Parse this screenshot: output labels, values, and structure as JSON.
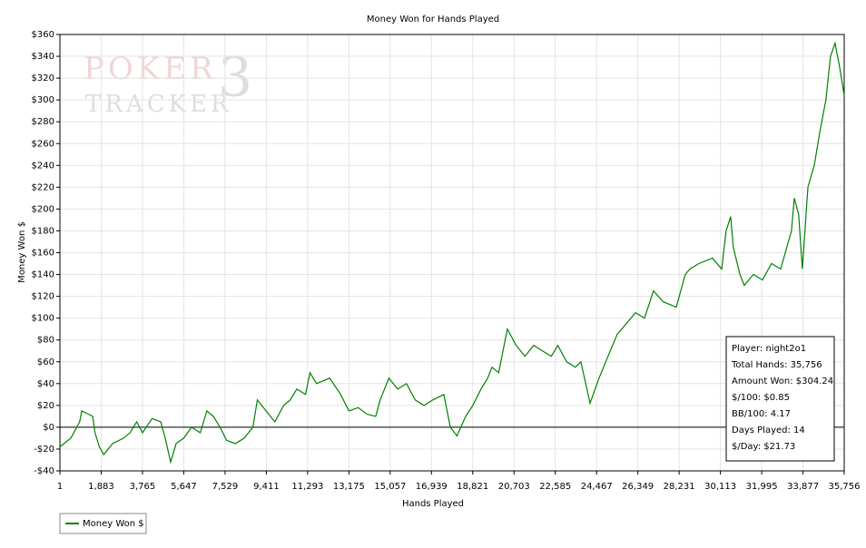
{
  "chart_data": {
    "type": "line",
    "title": "Money Won for Hands Played",
    "xlabel": "Hands Played",
    "ylabel": "Money Won $",
    "watermark": [
      "POKER",
      "TRACKER",
      "3"
    ],
    "grid": true,
    "legend": "bottom-left",
    "xlim": [
      1,
      35756
    ],
    "ylim": [
      -40,
      360
    ],
    "xticks": [
      1,
      {
        "value": 1883,
        "label": "1,883"
      },
      {
        "value": 3765,
        "label": "3,765"
      },
      {
        "value": 5647,
        "label": "5,647"
      },
      {
        "value": 7529,
        "label": "7,529"
      },
      {
        "value": 9411,
        "label": "9,411"
      },
      {
        "value": 11293,
        "label": "11,293"
      },
      {
        "value": 13175,
        "label": "13,175"
      },
      {
        "value": 15057,
        "label": "15,057"
      },
      {
        "value": 16939,
        "label": "16,939"
      },
      {
        "value": 18821,
        "label": "18,821"
      },
      {
        "value": 20703,
        "label": "20,703"
      },
      {
        "value": 22585,
        "label": "22,585"
      },
      {
        "value": 24467,
        "label": "24,467"
      },
      {
        "value": 26349,
        "label": "26,349"
      },
      {
        "value": 28231,
        "label": "28,231"
      },
      {
        "value": 30113,
        "label": "30,113"
      },
      {
        "value": 31995,
        "label": "31,995"
      },
      {
        "value": 33877,
        "label": "33,877"
      },
      {
        "value": 35756,
        "label": "35,756"
      }
    ],
    "yticks": [
      {
        "value": -40,
        "label": "-$40"
      },
      {
        "value": -20,
        "label": "-$20"
      },
      {
        "value": 0,
        "label": "$0"
      },
      {
        "value": 20,
        "label": "$20"
      },
      {
        "value": 40,
        "label": "$40"
      },
      {
        "value": 60,
        "label": "$60"
      },
      {
        "value": 80,
        "label": "$80"
      },
      {
        "value": 100,
        "label": "$100"
      },
      {
        "value": 120,
        "label": "$120"
      },
      {
        "value": 140,
        "label": "$140"
      },
      {
        "value": 160,
        "label": "$160"
      },
      {
        "value": 180,
        "label": "$180"
      },
      {
        "value": 200,
        "label": "$200"
      },
      {
        "value": 220,
        "label": "$220"
      },
      {
        "value": 240,
        "label": "$240"
      },
      {
        "value": 260,
        "label": "$260"
      },
      {
        "value": 280,
        "label": "$280"
      },
      {
        "value": 300,
        "label": "$300"
      },
      {
        "value": 320,
        "label": "$320"
      },
      {
        "value": 340,
        "label": "$340"
      },
      {
        "value": 360,
        "label": "$360"
      }
    ],
    "x": [
      1,
      500,
      900,
      1000,
      1300,
      1500,
      1600,
      1800,
      2000,
      2400,
      2900,
      3200,
      3500,
      3765,
      4200,
      4600,
      4800,
      5050,
      5300,
      5647,
      6000,
      6400,
      6700,
      7000,
      7300,
      7600,
      8000,
      8400,
      8800,
      9000,
      9400,
      9800,
      10200,
      10500,
      10800,
      11200,
      11400,
      11700,
      12300,
      12800,
      13175,
      13600,
      14000,
      14400,
      14600,
      15000,
      15400,
      15800,
      16200,
      16600,
      17000,
      17500,
      17800,
      18100,
      18500,
      18821,
      19200,
      19500,
      19700,
      20000,
      20400,
      20800,
      21200,
      21600,
      22000,
      22400,
      22700,
      23100,
      23500,
      23750,
      24170,
      24580,
      24990,
      25400,
      25820,
      26240,
      26650,
      27060,
      27500,
      28100,
      28510,
      28720,
      29130,
      29750,
      30170,
      30370,
      30580,
      30700,
      31000,
      31200,
      31615,
      32030,
      32440,
      32860,
      33350,
      33480,
      33680,
      33850,
      34100,
      34390,
      34640,
      34920,
      35130,
      35340,
      35550,
      35756
    ],
    "series": [
      {
        "name": "Money Won $",
        "color": "#008000",
        "values": [
          -18,
          -10,
          5,
          15,
          12,
          10,
          -5,
          -18,
          -25,
          -15,
          -10,
          -5,
          5,
          -5,
          8,
          5,
          -10,
          -32,
          -15,
          -10,
          0,
          -5,
          15,
          10,
          0,
          -12,
          -15,
          -10,
          0,
          25,
          15,
          5,
          20,
          25,
          35,
          30,
          50,
          40,
          45,
          30,
          15,
          18,
          12,
          10,
          25,
          45,
          35,
          40,
          25,
          20,
          25,
          30,
          0,
          -8,
          10,
          20,
          35,
          45,
          55,
          50,
          90,
          75,
          65,
          75,
          70,
          65,
          75,
          60,
          55,
          60,
          22,
          45,
          65,
          85,
          95,
          105,
          100,
          125,
          115,
          110,
          140,
          145,
          150,
          155,
          145,
          180,
          193,
          165,
          140,
          130,
          140,
          135,
          150,
          145,
          180,
          210,
          195,
          145,
          220,
          240,
          270,
          300,
          340,
          352,
          330,
          304
        ]
      }
    ],
    "info": [
      "Player: night2o1",
      "Total Hands: 35,756",
      "Amount Won: $304.24",
      "$/100: $0.85",
      "BB/100: 4.17",
      "Days Played: 14",
      "$/Day: $21.73"
    ]
  }
}
